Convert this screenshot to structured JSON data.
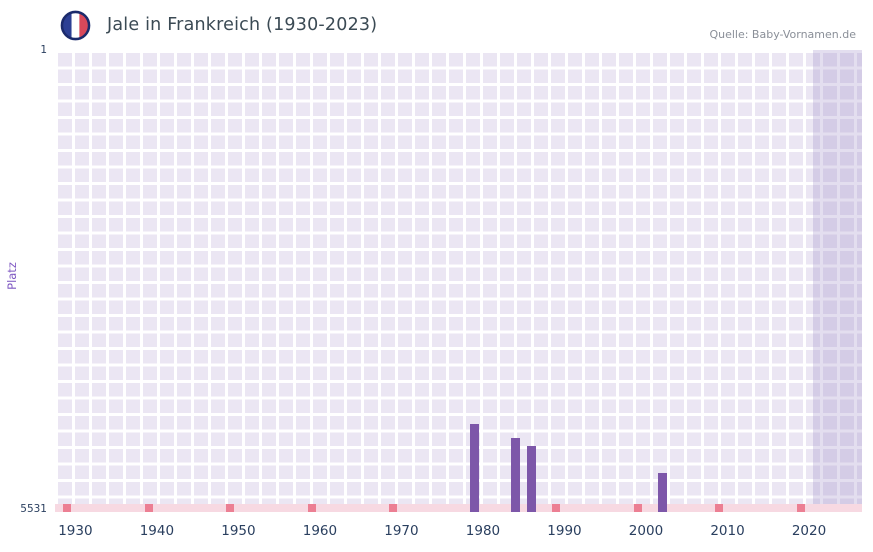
{
  "header": {
    "title": "Jale in Frankreich (1930-2023)",
    "source": "Quelle: Baby-Vornamen.de"
  },
  "chart_data": {
    "type": "bar",
    "title": "Jale in Frankreich (1930-2023)",
    "xlabel": "",
    "ylabel": "Platz",
    "x_range": [
      1927.5,
      2026.5
    ],
    "x_ticks": [
      1930,
      1940,
      1950,
      1960,
      1970,
      1980,
      1990,
      2000,
      2010,
      2020
    ],
    "y_axis": {
      "top_label": "1",
      "bottom_label": "5531",
      "min": 1,
      "max": 5531,
      "inverted": true
    },
    "grid": "on",
    "legend": "none",
    "series": [
      {
        "name": "Platz",
        "points": [
          {
            "year": 1979,
            "rank": 4480
          },
          {
            "year": 1984,
            "rank": 4650
          },
          {
            "year": 1986,
            "rank": 4740
          },
          {
            "year": 2002,
            "rank": 5060
          }
        ]
      }
    ],
    "unranked_strip": {
      "marks_years": [
        1929,
        1939,
        1949,
        1959,
        1969,
        1979,
        1989,
        1999,
        2009,
        2019
      ]
    },
    "recent_band": {
      "start": 2020.5,
      "end": 2026.5
    },
    "colors": {
      "bar": "#7d57a9",
      "plot_bg": "#ebe6f3",
      "grid": "#ffffff",
      "strip": "#f7d9e2",
      "strip_mark": "#ec7f93",
      "band": "rgba(156,136,196,0.28)",
      "tick_label": "#2a3f5f",
      "y_axis_title": "#7e57c2",
      "title": "#3b4a54",
      "source": "#8a8f98",
      "flag_blue": "#2c3f94",
      "flag_red": "#d8485a",
      "flag_ring": "#1b2a6b"
    }
  }
}
